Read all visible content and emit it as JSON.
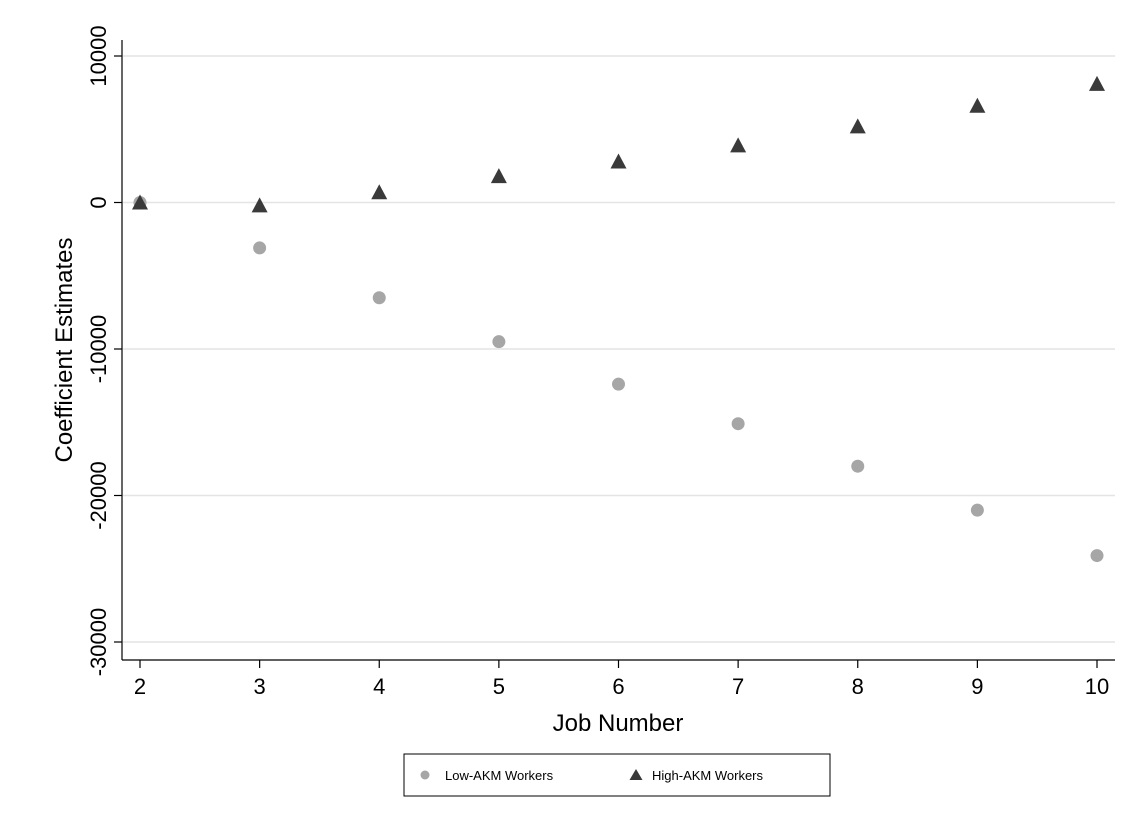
{
  "chart_data": {
    "type": "scatter",
    "title": "",
    "xlabel": "Job Number",
    "ylabel": "Coefficient Estimates",
    "x": [
      2,
      3,
      4,
      5,
      6,
      7,
      8,
      9,
      10
    ],
    "xlim": [
      2,
      10
    ],
    "ylim": [
      -30000,
      10000
    ],
    "xticks": [
      2,
      3,
      4,
      5,
      6,
      7,
      8,
      9,
      10
    ],
    "yticks": [
      10000,
      0,
      -10000,
      -20000,
      -30000
    ],
    "grid": "horizontal",
    "legend_position": "bottom",
    "series": [
      {
        "name": "Low-AKM Workers",
        "marker": "circle",
        "color": "#a6a6a6",
        "values": [
          0,
          -3100,
          -6500,
          -9500,
          -12400,
          -15100,
          -18000,
          -21000,
          -24100
        ]
      },
      {
        "name": "High-AKM Workers",
        "marker": "triangle",
        "color": "#3a3a3a",
        "values": [
          0,
          -200,
          700,
          1800,
          2800,
          3900,
          5200,
          6600,
          8100
        ]
      }
    ]
  }
}
